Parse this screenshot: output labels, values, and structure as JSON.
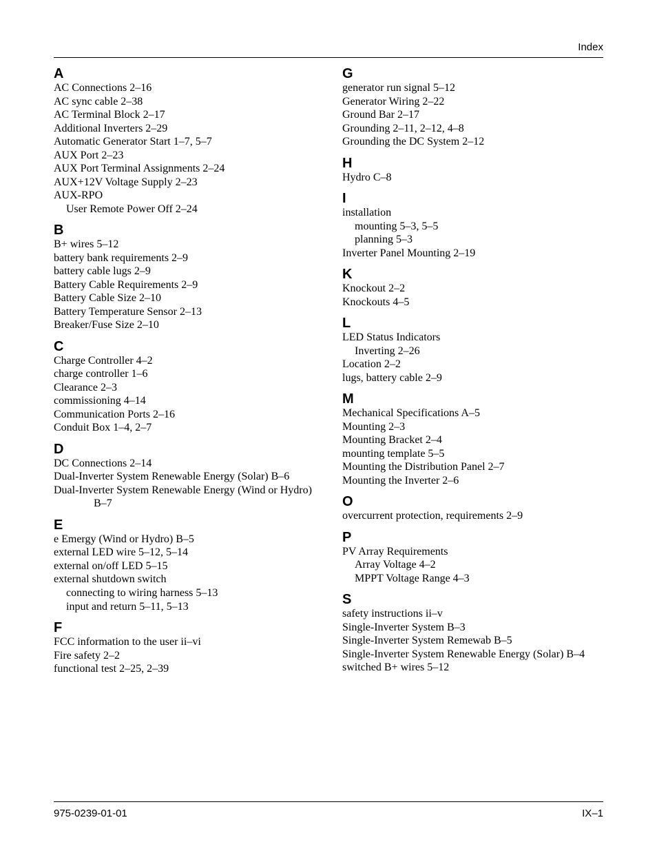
{
  "header": {
    "label": "Index"
  },
  "footer": {
    "docnum": "975-0239-01-01",
    "pagenum": "IX–1"
  },
  "left": [
    {
      "letter": "A",
      "entries": [
        {
          "text": "AC Connections 2–16"
        },
        {
          "text": "AC sync cable 2–38"
        },
        {
          "text": "AC Terminal Block 2–17"
        },
        {
          "text": "Additional Inverters 2–29"
        },
        {
          "text": "Automatic Generator Start 1–7, 5–7"
        },
        {
          "text": "AUX Port 2–23"
        },
        {
          "text": "AUX Port Terminal Assignments 2–24"
        },
        {
          "text": "AUX+12V Voltage Supply 2–23"
        },
        {
          "text": "AUX-RPO"
        },
        {
          "text": "User Remote Power Off 2–24",
          "sub": true
        }
      ]
    },
    {
      "letter": "B",
      "entries": [
        {
          "text": "B+ wires 5–12"
        },
        {
          "text": "battery bank requirements 2–9"
        },
        {
          "text": "battery cable lugs 2–9"
        },
        {
          "text": "Battery Cable Requirements 2–9"
        },
        {
          "text": "Battery Cable Size 2–10"
        },
        {
          "text": "Battery Temperature Sensor 2–13"
        },
        {
          "text": "Breaker/Fuse Size 2–10"
        }
      ]
    },
    {
      "letter": "C",
      "entries": [
        {
          "text": "Charge Controller 4–2"
        },
        {
          "text": "charge controller 1–6"
        },
        {
          "text": "Clearance 2–3"
        },
        {
          "text": "commissioning 4–14"
        },
        {
          "text": "Communication Ports 2–16"
        },
        {
          "text": "Conduit Box 1–4, 2–7"
        }
      ]
    },
    {
      "letter": "D",
      "entries": [
        {
          "text": "DC Connections 2–14"
        },
        {
          "text": "Dual-Inverter System Renewable Energy (Solar) B–6"
        },
        {
          "text": "Dual-Inverter System Renewable Energy (Wind or Hydro)"
        },
        {
          "text": "B–7",
          "sub2": true
        }
      ]
    },
    {
      "letter": "E",
      "entries": [
        {
          "text": "e Emergy (Wind or Hydro) B–5"
        },
        {
          "text": "external LED wire 5–12, 5–14"
        },
        {
          "text": "external on/off LED 5–15"
        },
        {
          "text": "external shutdown switch"
        },
        {
          "text": "connecting to wiring harness 5–13",
          "sub": true
        },
        {
          "text": "input and return 5–11, 5–13",
          "sub": true
        }
      ]
    },
    {
      "letter": "F",
      "entries": [
        {
          "text": "FCC information to the user ii–vi"
        },
        {
          "text": "Fire safety 2–2"
        },
        {
          "text": "functional test 2–25, 2–39"
        }
      ]
    }
  ],
  "right": [
    {
      "letter": "G",
      "entries": [
        {
          "text": "generator run signal 5–12"
        },
        {
          "text": "Generator Wiring 2–22"
        },
        {
          "text": "Ground Bar 2–17"
        },
        {
          "text": "Grounding 2–11, 2–12, 4–8"
        },
        {
          "text": "Grounding the DC System 2–12"
        }
      ]
    },
    {
      "letter": "H",
      "entries": [
        {
          "text": "Hydro C–8"
        }
      ]
    },
    {
      "letter": "I",
      "entries": [
        {
          "text": "installation"
        },
        {
          "text": "mounting 5–3, 5–5",
          "sub": true
        },
        {
          "text": "planning 5–3",
          "sub": true
        },
        {
          "text": "Inverter Panel Mounting 2–19"
        }
      ]
    },
    {
      "letter": "K",
      "entries": [
        {
          "text": "Knockout 2–2"
        },
        {
          "text": "Knockouts 4–5"
        }
      ]
    },
    {
      "letter": "L",
      "entries": [
        {
          "text": "LED Status Indicators"
        },
        {
          "text": "Inverting 2–26",
          "sub": true
        },
        {
          "text": "Location 2–2"
        },
        {
          "text": "lugs, battery cable 2–9"
        }
      ]
    },
    {
      "letter": "M",
      "entries": [
        {
          "text": "Mechanical Specifications A–5"
        },
        {
          "text": "Mounting 2–3"
        },
        {
          "text": "Mounting Bracket 2–4"
        },
        {
          "text": "mounting template 5–5"
        },
        {
          "text": "Mounting the Distribution Panel 2–7"
        },
        {
          "text": "Mounting the Inverter 2–6"
        }
      ]
    },
    {
      "letter": "O",
      "entries": [
        {
          "text": "overcurrent protection, requirements 2–9"
        }
      ]
    },
    {
      "letter": "P",
      "entries": [
        {
          "text": "PV Array Requirements"
        },
        {
          "text": "Array Voltage 4–2",
          "sub": true
        },
        {
          "text": "MPPT Voltage Range 4–3",
          "sub": true
        }
      ]
    },
    {
      "letter": "S",
      "entries": [
        {
          "text": "safety instructions ii–v"
        },
        {
          "text": "Single-Inverter System B–3"
        },
        {
          "text": "Single-Inverter System Remewab B–5"
        },
        {
          "text": "Single-Inverter System Renewable Energy (Solar) B–4"
        },
        {
          "text": "switched B+ wires 5–12"
        }
      ]
    }
  ]
}
